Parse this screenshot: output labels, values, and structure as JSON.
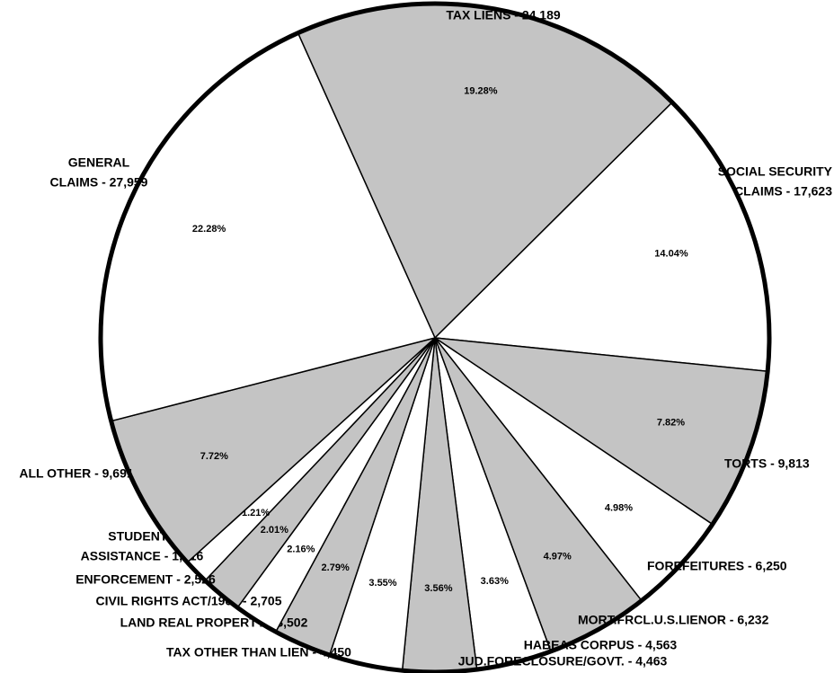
{
  "chart_data": {
    "type": "pie",
    "categories": [
      [
        "TAX LIENS - 24,189"
      ],
      [
        "SOCIAL SECURITY",
        "CLAIMS - 17,623"
      ],
      [
        "TORTS - 9,813"
      ],
      [
        "FOREFEITURES - 6,250"
      ],
      [
        "MORT.FRCL.U.S.LIENOR - 6,232"
      ],
      [
        "HABEAS CORPUS - 4,563"
      ],
      [
        "JUD.FORECLOSURE/GOVT. - 4,463"
      ],
      [
        "TAX OTHER THAN LIEN - 4,450"
      ],
      [
        "LAND REAL PROPERTY - 3,502"
      ],
      [
        "CIVIL RIGHTS ACT/1964 - 2,705"
      ],
      [
        "ENFORCEMENT - 2,526"
      ],
      [
        "STUDENTS",
        "ASSISTANCE - 1,516"
      ],
      [
        "ALL OTHER - 9,691"
      ],
      [
        "GENERAL",
        "CLAIMS - 27,959"
      ]
    ],
    "values": [
      19.28,
      14.04,
      7.82,
      4.98,
      4.97,
      3.63,
      3.56,
      3.55,
      2.79,
      2.16,
      2.01,
      1.21,
      7.72,
      22.28
    ],
    "value_labels": [
      "19.28%",
      "14.04%",
      "7.82%",
      "4.98%",
      "4.97%",
      "3.63%",
      "3.56%",
      "3.55%",
      "2.79%",
      "2.16%",
      "2.01%",
      "1.21%",
      "7.72%",
      "22.28%"
    ],
    "colors": [
      "#c4c4c4",
      "#ffffff",
      "#c4c4c4",
      "#ffffff",
      "#c4c4c4",
      "#ffffff",
      "#c4c4c4",
      "#ffffff",
      "#c4c4c4",
      "#ffffff",
      "#c4c4c4",
      "#ffffff",
      "#c4c4c4",
      "#ffffff"
    ]
  }
}
